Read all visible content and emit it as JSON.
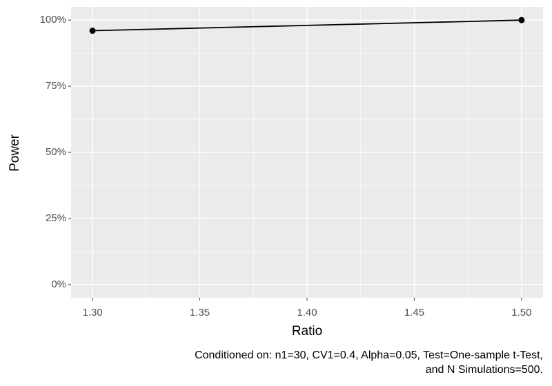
{
  "chart_data": {
    "type": "line",
    "x_label": "Ratio",
    "y_label": "Power",
    "caption": [
      "Conditioned on: n1=30, CV1=0.4, Alpha=0.05, Test=One-sample t-Test,",
      "and N Simulations=500."
    ],
    "x": [
      1.3,
      1.5
    ],
    "series": [
      {
        "color": "#000000",
        "values": [
          96,
          100
        ]
      }
    ],
    "xlim": [
      1.29,
      1.51
    ],
    "xticks": [
      {
        "value": 1.3,
        "label": "1.30"
      },
      {
        "value": 1.35,
        "label": "1.35"
      },
      {
        "value": 1.4,
        "label": "1.40"
      },
      {
        "value": 1.45,
        "label": "1.45"
      },
      {
        "value": 1.5,
        "label": "1.50"
      }
    ],
    "ylim": [
      -5,
      105
    ],
    "yticks": [
      {
        "value": 0,
        "label": "0%"
      },
      {
        "value": 25,
        "label": "25%"
      },
      {
        "value": 50,
        "label": "50%"
      },
      {
        "value": 75,
        "label": "75%"
      },
      {
        "value": 100,
        "label": "100%"
      }
    ],
    "grid": true
  }
}
